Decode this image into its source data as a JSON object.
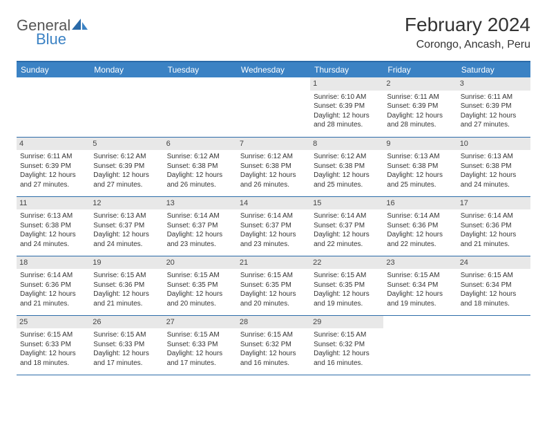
{
  "logo": {
    "general": "General",
    "blue": "Blue"
  },
  "title": "February 2024",
  "location": "Corongo, Ancash, Peru",
  "day_headers": [
    "Sunday",
    "Monday",
    "Tuesday",
    "Wednesday",
    "Thursday",
    "Friday",
    "Saturday"
  ],
  "colors": {
    "header_bg": "#3b82c4",
    "header_border": "#2a6aa8",
    "daynum_bg": "#e8e8e8",
    "logo_blue": "#3b82c4"
  },
  "weeks": [
    [
      {
        "empty": true
      },
      {
        "empty": true
      },
      {
        "empty": true
      },
      {
        "empty": true
      },
      {
        "day": "1",
        "sunrise": "Sunrise: 6:10 AM",
        "sunset": "Sunset: 6:39 PM",
        "daylight": "Daylight: 12 hours and 28 minutes."
      },
      {
        "day": "2",
        "sunrise": "Sunrise: 6:11 AM",
        "sunset": "Sunset: 6:39 PM",
        "daylight": "Daylight: 12 hours and 28 minutes."
      },
      {
        "day": "3",
        "sunrise": "Sunrise: 6:11 AM",
        "sunset": "Sunset: 6:39 PM",
        "daylight": "Daylight: 12 hours and 27 minutes."
      }
    ],
    [
      {
        "day": "4",
        "sunrise": "Sunrise: 6:11 AM",
        "sunset": "Sunset: 6:39 PM",
        "daylight": "Daylight: 12 hours and 27 minutes."
      },
      {
        "day": "5",
        "sunrise": "Sunrise: 6:12 AM",
        "sunset": "Sunset: 6:39 PM",
        "daylight": "Daylight: 12 hours and 27 minutes."
      },
      {
        "day": "6",
        "sunrise": "Sunrise: 6:12 AM",
        "sunset": "Sunset: 6:38 PM",
        "daylight": "Daylight: 12 hours and 26 minutes."
      },
      {
        "day": "7",
        "sunrise": "Sunrise: 6:12 AM",
        "sunset": "Sunset: 6:38 PM",
        "daylight": "Daylight: 12 hours and 26 minutes."
      },
      {
        "day": "8",
        "sunrise": "Sunrise: 6:12 AM",
        "sunset": "Sunset: 6:38 PM",
        "daylight": "Daylight: 12 hours and 25 minutes."
      },
      {
        "day": "9",
        "sunrise": "Sunrise: 6:13 AM",
        "sunset": "Sunset: 6:38 PM",
        "daylight": "Daylight: 12 hours and 25 minutes."
      },
      {
        "day": "10",
        "sunrise": "Sunrise: 6:13 AM",
        "sunset": "Sunset: 6:38 PM",
        "daylight": "Daylight: 12 hours and 24 minutes."
      }
    ],
    [
      {
        "day": "11",
        "sunrise": "Sunrise: 6:13 AM",
        "sunset": "Sunset: 6:38 PM",
        "daylight": "Daylight: 12 hours and 24 minutes."
      },
      {
        "day": "12",
        "sunrise": "Sunrise: 6:13 AM",
        "sunset": "Sunset: 6:37 PM",
        "daylight": "Daylight: 12 hours and 24 minutes."
      },
      {
        "day": "13",
        "sunrise": "Sunrise: 6:14 AM",
        "sunset": "Sunset: 6:37 PM",
        "daylight": "Daylight: 12 hours and 23 minutes."
      },
      {
        "day": "14",
        "sunrise": "Sunrise: 6:14 AM",
        "sunset": "Sunset: 6:37 PM",
        "daylight": "Daylight: 12 hours and 23 minutes."
      },
      {
        "day": "15",
        "sunrise": "Sunrise: 6:14 AM",
        "sunset": "Sunset: 6:37 PM",
        "daylight": "Daylight: 12 hours and 22 minutes."
      },
      {
        "day": "16",
        "sunrise": "Sunrise: 6:14 AM",
        "sunset": "Sunset: 6:36 PM",
        "daylight": "Daylight: 12 hours and 22 minutes."
      },
      {
        "day": "17",
        "sunrise": "Sunrise: 6:14 AM",
        "sunset": "Sunset: 6:36 PM",
        "daylight": "Daylight: 12 hours and 21 minutes."
      }
    ],
    [
      {
        "day": "18",
        "sunrise": "Sunrise: 6:14 AM",
        "sunset": "Sunset: 6:36 PM",
        "daylight": "Daylight: 12 hours and 21 minutes."
      },
      {
        "day": "19",
        "sunrise": "Sunrise: 6:15 AM",
        "sunset": "Sunset: 6:36 PM",
        "daylight": "Daylight: 12 hours and 21 minutes."
      },
      {
        "day": "20",
        "sunrise": "Sunrise: 6:15 AM",
        "sunset": "Sunset: 6:35 PM",
        "daylight": "Daylight: 12 hours and 20 minutes."
      },
      {
        "day": "21",
        "sunrise": "Sunrise: 6:15 AM",
        "sunset": "Sunset: 6:35 PM",
        "daylight": "Daylight: 12 hours and 20 minutes."
      },
      {
        "day": "22",
        "sunrise": "Sunrise: 6:15 AM",
        "sunset": "Sunset: 6:35 PM",
        "daylight": "Daylight: 12 hours and 19 minutes."
      },
      {
        "day": "23",
        "sunrise": "Sunrise: 6:15 AM",
        "sunset": "Sunset: 6:34 PM",
        "daylight": "Daylight: 12 hours and 19 minutes."
      },
      {
        "day": "24",
        "sunrise": "Sunrise: 6:15 AM",
        "sunset": "Sunset: 6:34 PM",
        "daylight": "Daylight: 12 hours and 18 minutes."
      }
    ],
    [
      {
        "day": "25",
        "sunrise": "Sunrise: 6:15 AM",
        "sunset": "Sunset: 6:33 PM",
        "daylight": "Daylight: 12 hours and 18 minutes."
      },
      {
        "day": "26",
        "sunrise": "Sunrise: 6:15 AM",
        "sunset": "Sunset: 6:33 PM",
        "daylight": "Daylight: 12 hours and 17 minutes."
      },
      {
        "day": "27",
        "sunrise": "Sunrise: 6:15 AM",
        "sunset": "Sunset: 6:33 PM",
        "daylight": "Daylight: 12 hours and 17 minutes."
      },
      {
        "day": "28",
        "sunrise": "Sunrise: 6:15 AM",
        "sunset": "Sunset: 6:32 PM",
        "daylight": "Daylight: 12 hours and 16 minutes."
      },
      {
        "day": "29",
        "sunrise": "Sunrise: 6:15 AM",
        "sunset": "Sunset: 6:32 PM",
        "daylight": "Daylight: 12 hours and 16 minutes."
      },
      {
        "empty": true
      },
      {
        "empty": true
      }
    ]
  ]
}
